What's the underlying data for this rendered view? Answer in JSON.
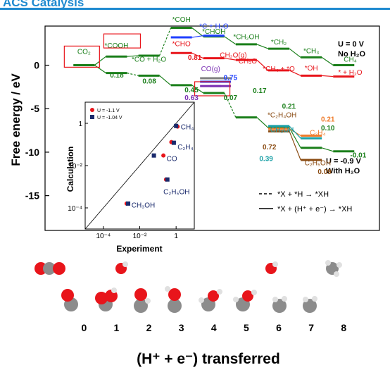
{
  "header": {
    "journal": "ACS Catalysis"
  },
  "colors": {
    "accent": "#1f8ad0",
    "green": "#1a7f1a",
    "red": "#e8151b",
    "blue": "#1f3fff",
    "purple": "#7a2fb3",
    "gray": "#7f7f7f",
    "orange": "#ef7b2a",
    "brown": "#8a4b12",
    "teal": "#1aa0a6",
    "navy": "#1a2a6c"
  },
  "chart_data": [
    {
      "type": "line",
      "xlabel": "(H⁺ + e⁻) transferred",
      "ylabel": "Free energy / eV",
      "xticks": [
        "0",
        "1",
        "2",
        "3",
        "4",
        "5",
        "6",
        "7",
        "8"
      ],
      "yticks": [
        "0",
        "-5",
        "-10",
        "-15"
      ],
      "ylim": [
        -19,
        4.5
      ],
      "conditions": [
        "U = 0 V",
        "No H₂O"
      ],
      "conditions2": [
        "U = -0.9 V",
        "With H₂O"
      ],
      "legend": [
        "*X + *H → *XH",
        "*X + (H⁺ + e⁻) → *XH"
      ],
      "species_labels": [
        "CO₂",
        "*COOH",
        "*CO + H₂O",
        "*COH",
        "*CHO",
        "*C + H₂O",
        "*CHOH",
        "*CH₂OH",
        "*CH₃O",
        "CH₂O(g)",
        "CO(g)",
        "*CH₂",
        "*CH₄ + *O",
        "*CH₃",
        "*OH",
        "CH₄",
        "* + H₂O",
        "*C₂H₄OH",
        "CH₃OH",
        "C₂H₄",
        "C₂H₅OH"
      ],
      "barrier_labels": [
        "0.18",
        "0.08",
        "0.81",
        "0.45",
        "0.63",
        "0.75",
        "0.07",
        "0.17",
        "0.21",
        "0.21",
        "0.10",
        "0.72",
        "0.39",
        "0.09",
        "-0.01"
      ],
      "series": [
        {
          "name": "",
          "levels": [
            [
              0,
              0
            ],
            [
              1,
              1.0
            ],
            [
              2,
              1.1
            ],
            [
              3,
              4.3
            ],
            [
              4,
              3.3
            ],
            [
              5,
              2.4
            ],
            [
              6,
              1.9
            ],
            [
              7,
              0.9
            ],
            [
              8,
              0.0
            ]
          ]
        },
        {
          "name": "",
          "levels": [
            [
              0,
              0
            ],
            [
              1,
              -0.9
            ],
            [
              2,
              -1.2
            ],
            [
              3,
              -2.3
            ],
            [
              4,
              -3.2
            ],
            [
              5,
              -6.0
            ],
            [
              6,
              -7.2
            ],
            [
              7,
              -9.5
            ],
            [
              8,
              -9.9
            ]
          ]
        }
      ]
    },
    {
      "type": "scatter",
      "xlabel": "Experiment",
      "ylabel": "Calculation",
      "log_scale": true,
      "xticks": [
        "10⁻⁴",
        "10⁻²",
        "1"
      ],
      "yticks": [
        "10⁻⁴",
        "10⁻²",
        "1"
      ],
      "xlim": [
        1e-05,
        10
      ],
      "ylim": [
        1e-05,
        10
      ],
      "legend": [
        "U = -1.1 V",
        "U = -1.04 V"
      ],
      "series": [
        {
          "name": "U = -1.1 V",
          "points": [
            [
              1.2,
              0.7
            ],
            [
              0.55,
              0.13
            ],
            [
              0.2,
              0.03
            ],
            [
              0.28,
              0.0022
            ],
            [
              0.0019,
              0.00016
            ]
          ]
        },
        {
          "name": "U = -1.04 V",
          "points": [
            [
              1.0,
              0.75
            ],
            [
              0.75,
              0.12
            ],
            [
              0.06,
              0.03
            ],
            [
              0.33,
              0.0022
            ],
            [
              0.0023,
              0.00016
            ]
          ]
        }
      ],
      "point_labels": [
        "CH₄",
        "C₂H₄",
        "CO",
        "C₂H₅OH",
        "CH₃OH"
      ]
    }
  ]
}
